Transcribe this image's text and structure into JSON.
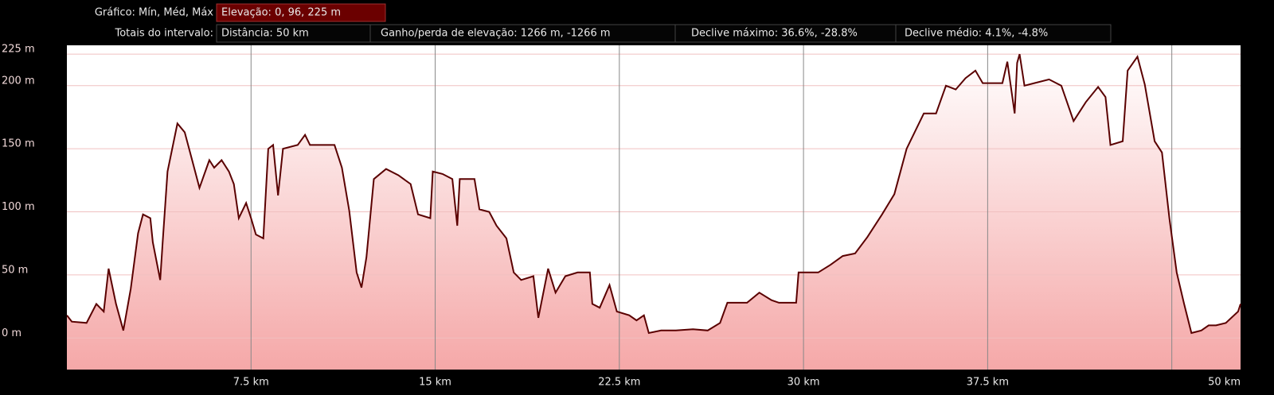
{
  "header": {
    "chart_label": "Gráfico: Mín, Méd, Máx",
    "elevation": "Elevação: 0, 96, 225 m",
    "totals_label": "Totais do intervalo:",
    "distance": "Distância: 50 km",
    "gain_loss": "Ganho/perda de elevação: 1266 m, -1266 m",
    "max_slope": "Declive máximo: 36.6%, -28.8%",
    "avg_slope": "Declive médio: 4.1%, -4.8%"
  },
  "chart_data": {
    "type": "area",
    "color": "#5a0000",
    "fill_top": "#ffffff",
    "fill_bottom": "#f5a8a8",
    "grid": true,
    "xlim": [
      0,
      47.8
    ],
    "ylim": [
      -25,
      232
    ],
    "xticks": [
      {
        "value": 7.5,
        "label": "7.5 km"
      },
      {
        "value": 15,
        "label": "15 km"
      },
      {
        "value": 22.5,
        "label": "22.5 km"
      },
      {
        "value": 30,
        "label": "30 km"
      },
      {
        "value": 37.5,
        "label": "37.5 km"
      },
      {
        "value": 45,
        "label": null
      }
    ],
    "x_end_label": "50 km",
    "yticks": [
      {
        "value": 0,
        "label": "0 m"
      },
      {
        "value": 50,
        "label": "50 m"
      },
      {
        "value": 100,
        "label": "100 m"
      },
      {
        "value": 150,
        "label": "150 m"
      },
      {
        "value": 200,
        "label": "200 m"
      },
      {
        "value": 225,
        "label": "225 m"
      }
    ],
    "x": [
      0.0,
      0.2,
      0.8,
      1.2,
      1.5,
      1.7,
      2.0,
      2.3,
      2.6,
      2.9,
      3.1,
      3.4,
      3.5,
      3.8,
      3.9,
      4.1,
      4.5,
      4.8,
      5.1,
      5.4,
      5.8,
      6.0,
      6.3,
      6.6,
      6.8,
      7.0,
      7.3,
      7.5,
      7.7,
      8.0,
      8.2,
      8.4,
      8.6,
      8.8,
      9.4,
      9.7,
      9.9,
      10.9,
      11.2,
      11.5,
      11.8,
      12.0,
      12.2,
      12.5,
      13.0,
      13.5,
      14.0,
      14.3,
      14.8,
      14.9,
      15.3,
      15.7,
      15.9,
      16.0,
      16.6,
      16.8,
      17.2,
      17.5,
      17.9,
      18.2,
      18.5,
      19.0,
      19.2,
      19.6,
      19.9,
      20.3,
      20.8,
      21.3,
      21.4,
      21.7,
      22.1,
      22.4,
      22.9,
      23.2,
      23.5,
      23.7,
      24.2,
      24.8,
      25.5,
      26.1,
      26.6,
      26.9,
      27.7,
      28.2,
      28.7,
      29.0,
      29.7,
      29.8,
      30.6,
      31.1,
      31.6,
      32.1,
      32.6,
      33.2,
      33.7,
      34.2,
      34.9,
      35.4,
      35.8,
      36.2,
      36.6,
      37.0,
      37.3,
      38.1,
      38.3,
      38.6,
      38.7,
      38.8,
      39.0,
      39.4,
      40.0,
      40.5,
      41.0,
      41.5,
      42.0,
      42.3,
      42.5,
      43.0,
      43.2,
      43.6,
      43.9,
      44.3,
      44.6,
      44.9,
      45.2,
      45.5,
      45.8,
      46.2,
      46.5,
      46.8,
      47.2,
      47.7,
      47.8
    ],
    "values": [
      18,
      13,
      12,
      27,
      21,
      55,
      27,
      6,
      39,
      83,
      98,
      95,
      76,
      46,
      76,
      132,
      170,
      163,
      141,
      119,
      141,
      135,
      141,
      132,
      122,
      95,
      107,
      95,
      82,
      79,
      150,
      153,
      113,
      150,
      153,
      161,
      153,
      153,
      135,
      101,
      52,
      40,
      64,
      126,
      134,
      129,
      122,
      98,
      95,
      132,
      130,
      126,
      89,
      126,
      126,
      102,
      100,
      89,
      79,
      52,
      46,
      49,
      16,
      55,
      36,
      49,
      52,
      52,
      27,
      24,
      42,
      21,
      18,
      14,
      18,
      4,
      6,
      6,
      7,
      6,
      12,
      28,
      28,
      36,
      30,
      28,
      28,
      52,
      52,
      58,
      65,
      67,
      80,
      98,
      114,
      150,
      178,
      178,
      200,
      197,
      206,
      212,
      202,
      202,
      219,
      178,
      218,
      225,
      200,
      202,
      205,
      200,
      172,
      187,
      199,
      191,
      153,
      156,
      212,
      223,
      201,
      156,
      147,
      95,
      52,
      27,
      4,
      6,
      10,
      10,
      12,
      21,
      27
    ]
  }
}
